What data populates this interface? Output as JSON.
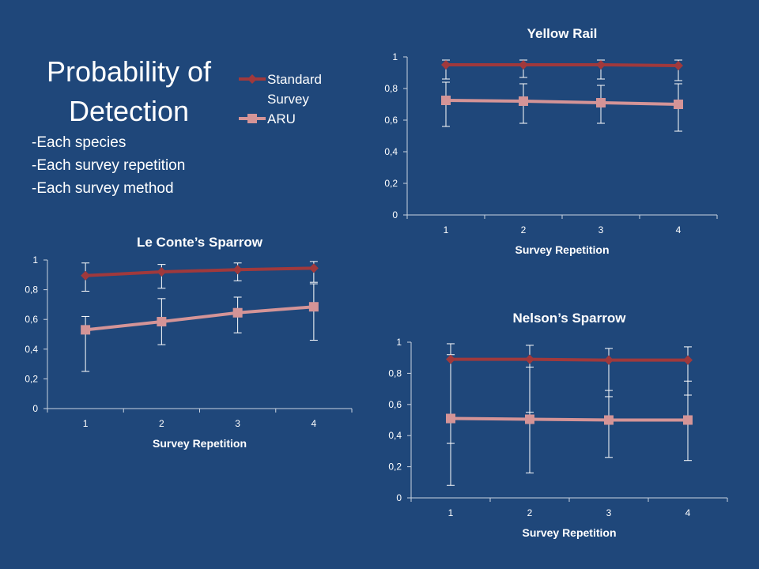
{
  "slide": {
    "title": "Probability of Detection",
    "bullets": [
      "-Each species",
      "-Each survey repetition",
      "-Each survey method"
    ]
  },
  "legend": {
    "items": [
      {
        "label": "Standard Survey",
        "color": "#a0393c",
        "marker": "diamond"
      },
      {
        "label": "ARU",
        "color": "#d49497",
        "marker": "square"
      }
    ]
  },
  "chart_data": [
    {
      "type": "line",
      "title": "Yellow Rail",
      "xlabel": "Survey Repetition",
      "ylabel": "",
      "x": [
        1,
        2,
        3,
        4
      ],
      "ylim": [
        0,
        1
      ],
      "yticks": [
        "0",
        "0,2",
        "0,4",
        "0,6",
        "0,8",
        "1"
      ],
      "series": [
        {
          "name": "Standard Survey",
          "color": "#a0393c",
          "marker": "diamond",
          "values": [
            0.95,
            0.95,
            0.95,
            0.945
          ],
          "err_low": [
            0.86,
            0.87,
            0.86,
            0.85
          ],
          "err_high": [
            0.98,
            0.98,
            0.98,
            0.98
          ]
        },
        {
          "name": "ARU",
          "color": "#d49497",
          "marker": "square",
          "values": [
            0.725,
            0.72,
            0.71,
            0.7
          ],
          "err_low": [
            0.56,
            0.58,
            0.58,
            0.53
          ],
          "err_high": [
            0.84,
            0.83,
            0.82,
            0.83
          ]
        }
      ]
    },
    {
      "type": "line",
      "title": "Le Conte’s Sparrow",
      "xlabel": "Survey Repetition",
      "ylabel": "",
      "x": [
        1,
        2,
        3,
        4
      ],
      "ylim": [
        0,
        1
      ],
      "yticks": [
        "0",
        "0,2",
        "0,4",
        "0,6",
        "0,8",
        "1"
      ],
      "series": [
        {
          "name": "Standard Survey",
          "color": "#a0393c",
          "marker": "diamond",
          "values": [
            0.895,
            0.92,
            0.935,
            0.945
          ],
          "err_low": [
            0.79,
            0.81,
            0.86,
            0.85
          ],
          "err_high": [
            0.98,
            0.97,
            0.98,
            0.99
          ]
        },
        {
          "name": "ARU",
          "color": "#d49497",
          "marker": "square",
          "values": [
            0.53,
            0.585,
            0.645,
            0.685
          ],
          "err_low": [
            0.25,
            0.43,
            0.51,
            0.46
          ],
          "err_high": [
            0.62,
            0.74,
            0.75,
            0.84
          ]
        }
      ]
    },
    {
      "type": "line",
      "title": "Nelson’s Sparrow",
      "xlabel": "Survey Repetition",
      "ylabel": "",
      "x": [
        1,
        2,
        3,
        4
      ],
      "ylim": [
        0,
        1
      ],
      "yticks": [
        "0",
        "0,2",
        "0,4",
        "0,6",
        "0,8",
        "1"
      ],
      "series": [
        {
          "name": "Standard Survey",
          "color": "#a0393c",
          "marker": "diamond",
          "values": [
            0.89,
            0.89,
            0.885,
            0.885
          ],
          "err_low": [
            0.35,
            0.55,
            0.65,
            0.66
          ],
          "err_high": [
            0.99,
            0.98,
            0.96,
            0.97
          ]
        },
        {
          "name": "ARU",
          "color": "#d49497",
          "marker": "square",
          "values": [
            0.51,
            0.505,
            0.5,
            0.5
          ],
          "err_low": [
            0.08,
            0.16,
            0.26,
            0.24
          ],
          "err_high": [
            0.92,
            0.84,
            0.69,
            0.75
          ]
        }
      ]
    }
  ]
}
